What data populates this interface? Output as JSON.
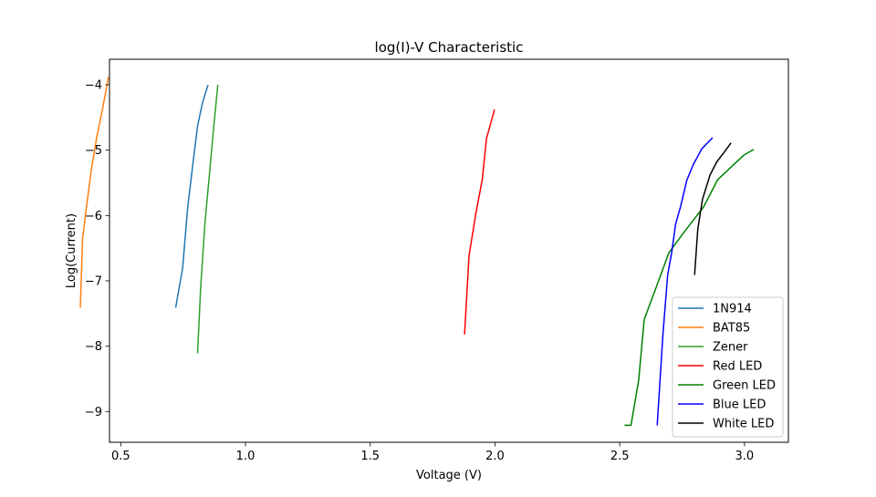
{
  "chart_data": {
    "type": "line",
    "title": "log(I)-V Characteristic",
    "xlabel": "Voltage (V)",
    "ylabel": "Log(Current)",
    "xlim": [
      0.455,
      3.176
    ],
    "ylim": [
      -9.47,
      -3.61
    ],
    "xticks": [
      0.5,
      1.0,
      1.5,
      2.0,
      2.5,
      3.0
    ],
    "xtick_labels": [
      "0.5",
      "1.0",
      "1.5",
      "2.0",
      "2.5",
      "3.0"
    ],
    "yticks": [
      -9,
      -8,
      -7,
      -6,
      -5,
      -4
    ],
    "ytick_labels": [
      "−9",
      "−8",
      "−7",
      "−6",
      "−5",
      "−4"
    ],
    "grid": false,
    "legend_position": "lower-right",
    "series": [
      {
        "name": "1N914",
        "color": "#1f77b4",
        "x": [
          0.72,
          0.748,
          0.768,
          0.789,
          0.808,
          0.828,
          0.85
        ],
        "y": [
          -7.41,
          -6.81,
          -5.89,
          -5.22,
          -4.63,
          -4.27,
          -4.0
        ]
      },
      {
        "name": "BAT85",
        "color": "#ff7f0e",
        "x": [
          0.338,
          0.347,
          0.362,
          0.382,
          0.403,
          0.425,
          0.451
        ],
        "y": [
          -7.41,
          -6.35,
          -5.89,
          -5.31,
          -4.82,
          -4.41,
          -3.88
        ]
      },
      {
        "name": "Zener",
        "color": "#2ca02c",
        "x": [
          0.808,
          0.82,
          0.838,
          0.857,
          0.872,
          0.889
        ],
        "y": [
          -8.11,
          -7.13,
          -6.1,
          -5.31,
          -4.68,
          -4.0
        ]
      },
      {
        "name": "Red LED",
        "color": "#ff0000",
        "x": [
          1.878,
          1.896,
          1.922,
          1.949,
          1.966,
          1.998
        ],
        "y": [
          -7.82,
          -6.62,
          -6.0,
          -5.45,
          -4.82,
          -4.38
        ]
      },
      {
        "name": "Green LED",
        "color": "#008000",
        "x": [
          2.519,
          2.545,
          2.576,
          2.598,
          2.643,
          2.697,
          2.757,
          2.836,
          2.893,
          2.996,
          3.037
        ],
        "y": [
          -9.21,
          -9.21,
          -8.52,
          -7.59,
          -7.13,
          -6.57,
          -6.26,
          -5.87,
          -5.45,
          -5.08,
          -4.99
        ]
      },
      {
        "name": "Blue LED",
        "color": "#0000ff",
        "x": [
          2.65,
          2.673,
          2.692,
          2.709,
          2.724,
          2.744,
          2.769,
          2.795,
          2.829,
          2.872
        ],
        "y": [
          -9.21,
          -7.82,
          -6.91,
          -6.55,
          -6.13,
          -5.86,
          -5.46,
          -5.22,
          -4.98,
          -4.81
        ]
      },
      {
        "name": "White LED",
        "color": "#000000",
        "x": [
          2.8,
          2.813,
          2.832,
          2.862,
          2.889,
          2.919,
          2.946
        ],
        "y": [
          -6.91,
          -6.21,
          -5.75,
          -5.38,
          -5.18,
          -5.03,
          -4.89
        ]
      }
    ]
  }
}
